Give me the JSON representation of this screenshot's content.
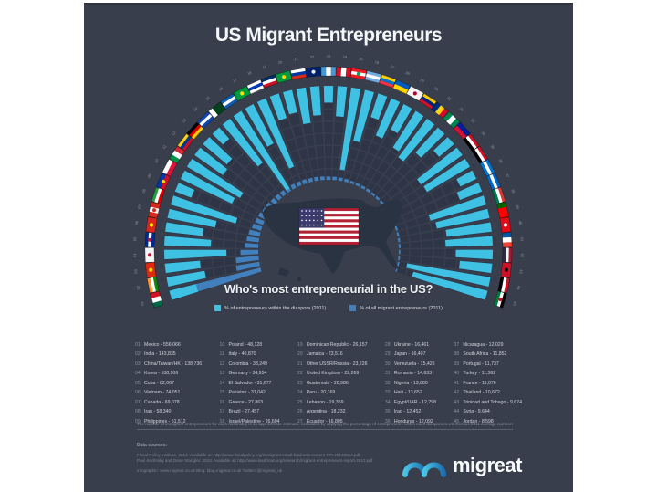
{
  "header": {
    "title": "US Migrant Entrepreneurs"
  },
  "question": "Who's most entrepreneurial in the US?",
  "legend": {
    "items": [
      {
        "label": "% of entrepreneurs within the diaspora (2011)",
        "color": "#3FC1E4"
      },
      {
        "label": "% of all migrant entrepreneurs (2011)",
        "color": "#4180BC"
      }
    ]
  },
  "chart_data": {
    "type": "radial-bar",
    "title": "US Migrant Entrepreneurs",
    "subtitle": "Who's most entrepreneurial in the US?",
    "legend_position": "bottom-center",
    "arc_degrees": 212,
    "series": [
      {
        "name": "% of entrepreneurs within the diaspora (2011)",
        "color": "#3FC1E4",
        "anchor": "outer"
      },
      {
        "name": "% of all migrant entrepreneurs (2011)",
        "color": "#4180BC",
        "anchor": "inner"
      }
    ],
    "countries": [
      {
        "rank": "01",
        "name": "Mexico",
        "count": "556,066",
        "within_diaspora_pct": 4.9,
        "share_of_all_pct": 27.7,
        "flag": {
          "o": "v",
          "c": [
            "#006847",
            "#ffffff",
            "#ce1126"
          ]
        }
      },
      {
        "rank": "02",
        "name": "India",
        "count": "143,835",
        "within_diaspora_pct": 6.9,
        "share_of_all_pct": 7.2,
        "flag": {
          "o": "h",
          "c": [
            "#ff9933",
            "#ffffff",
            "#128807"
          ]
        }
      },
      {
        "rank": "03",
        "name": "China/Taiwan/HK",
        "count": "138,736",
        "within_diaspora_pct": 6.3,
        "share_of_all_pct": 6.9,
        "flag": {
          "o": "s",
          "c": [
            "#de2910"
          ],
          "e": "#ffde00"
        }
      },
      {
        "rank": "04",
        "name": "Korea",
        "count": "108,906",
        "within_diaspora_pct": 11.1,
        "share_of_all_pct": 5.4,
        "flag": {
          "o": "s",
          "c": [
            "#f5f5f5"
          ],
          "e": "#c60c30"
        }
      },
      {
        "rank": "05",
        "name": "Cuba",
        "count": "82,067",
        "within_diaspora_pct": 8.3,
        "share_of_all_pct": 4.1,
        "flag": {
          "o": "h",
          "c": [
            "#002a8f",
            "#ffffff",
            "#002a8f"
          ],
          "e": "#cf142b"
        }
      },
      {
        "rank": "06",
        "name": "Vietnam",
        "count": "74,051",
        "within_diaspora_pct": 6.7,
        "share_of_all_pct": 3.7,
        "flag": {
          "o": "s",
          "c": [
            "#da251d"
          ],
          "e": "#ffff00"
        }
      },
      {
        "rank": "07",
        "name": "Canada",
        "count": "69,078",
        "within_diaspora_pct": 8.7,
        "share_of_all_pct": 3.4,
        "flag": {
          "o": "v",
          "c": [
            "#d52b1e",
            "#ffffff",
            "#d52b1e"
          ],
          "e": "#d52b1e"
        }
      },
      {
        "rank": "08",
        "name": "Iran",
        "count": "58,340",
        "within_diaspora_pct": 12.1,
        "share_of_all_pct": 2.9,
        "flag": {
          "o": "h",
          "c": [
            "#239f40",
            "#ffffff",
            "#da0000"
          ]
        }
      },
      {
        "rank": "09",
        "name": "Philippines",
        "count": "51,512",
        "within_diaspora_pct": 3.1,
        "share_of_all_pct": 2.6,
        "flag": {
          "o": "h",
          "c": [
            "#0038a8",
            "#ce1126"
          ],
          "e": "#fcd116"
        }
      },
      {
        "rank": "10",
        "name": "Poland",
        "count": "48,128",
        "within_diaspora_pct": 10.2,
        "share_of_all_pct": 2.4,
        "flag": {
          "o": "h",
          "c": [
            "#ffffff",
            "#dc143c"
          ]
        }
      },
      {
        "rank": "11",
        "name": "Italy",
        "count": "40,870",
        "within_diaspora_pct": 11.0,
        "share_of_all_pct": 2.0,
        "flag": {
          "o": "v",
          "c": [
            "#009246",
            "#ffffff",
            "#ce2b37"
          ]
        }
      },
      {
        "rank": "12",
        "name": "Colombia",
        "count": "38,249",
        "within_diaspora_pct": 6.2,
        "share_of_all_pct": 1.9,
        "flag": {
          "o": "h",
          "c": [
            "#fcd116",
            "#003893",
            "#ce1126"
          ]
        }
      },
      {
        "rank": "13",
        "name": "Germany",
        "count": "34,954",
        "within_diaspora_pct": 5.6,
        "share_of_all_pct": 1.7,
        "flag": {
          "o": "h",
          "c": [
            "#000000",
            "#dd0000",
            "#ffce00"
          ]
        }
      },
      {
        "rank": "14",
        "name": "El Salvador",
        "count": "31,677",
        "within_diaspora_pct": 2.7,
        "share_of_all_pct": 1.6,
        "flag": {
          "o": "h",
          "c": [
            "#0f47af",
            "#ffffff",
            "#0f47af"
          ]
        }
      },
      {
        "rank": "15",
        "name": "Pakistan",
        "count": "31,042",
        "within_diaspora_pct": 9.8,
        "share_of_all_pct": 1.5,
        "flag": {
          "o": "v",
          "c": [
            "#ffffff",
            "#01411c",
            "#01411c"
          ]
        }
      },
      {
        "rank": "16",
        "name": "Greece",
        "count": "27,863",
        "within_diaspora_pct": 16.3,
        "share_of_all_pct": 1.4,
        "flag": {
          "o": "h",
          "c": [
            "#0d5eaf",
            "#ffffff",
            "#0d5eaf"
          ]
        }
      },
      {
        "rank": "17",
        "name": "Brazil",
        "count": "27,457",
        "within_diaspora_pct": 7.9,
        "share_of_all_pct": 1.4,
        "flag": {
          "o": "s",
          "c": [
            "#009c3b"
          ],
          "e": "#ffdf00"
        }
      },
      {
        "rank": "18",
        "name": "Israel/Palestine",
        "count": "26,604",
        "within_diaspora_pct": 13.2,
        "share_of_all_pct": 1.3,
        "flag": {
          "o": "h",
          "c": [
            "#ffffff",
            "#0038b8",
            "#ffffff"
          ]
        }
      },
      {
        "rank": "19",
        "name": "Dominican Republic",
        "count": "26,157",
        "within_diaspora_pct": 4.6,
        "share_of_all_pct": 1.3,
        "flag": {
          "o": "h",
          "c": [
            "#002d62",
            "#ffffff",
            "#ce1126"
          ]
        }
      },
      {
        "rank": "20",
        "name": "Jamaica",
        "count": "23,516",
        "within_diaspora_pct": 4.1,
        "share_of_all_pct": 1.2,
        "flag": {
          "o": "s",
          "c": [
            "#009b3a"
          ],
          "e": "#fed100"
        }
      },
      {
        "rank": "21",
        "name": "Other USSR/Russia",
        "count": "23,226",
        "within_diaspora_pct": 6.4,
        "share_of_all_pct": 1.2,
        "flag": {
          "o": "h",
          "c": [
            "#ffffff",
            "#0039a6",
            "#d52b1e"
          ]
        }
      },
      {
        "rank": "22",
        "name": "United Kingdom",
        "count": "22,269",
        "within_diaspora_pct": 5.2,
        "share_of_all_pct": 1.1,
        "flag": {
          "o": "s",
          "c": [
            "#012169"
          ],
          "e": "#e8edf2"
        }
      },
      {
        "rank": "23",
        "name": "Guatemala",
        "count": "20,986",
        "within_diaspora_pct": 3.0,
        "share_of_all_pct": 1.0,
        "flag": {
          "o": "v",
          "c": [
            "#4997d0",
            "#ffffff",
            "#4997d0"
          ]
        }
      },
      {
        "rank": "24",
        "name": "Peru",
        "count": "20,169",
        "within_diaspora_pct": 5.4,
        "share_of_all_pct": 1.0,
        "flag": {
          "o": "v",
          "c": [
            "#d91023",
            "#ffffff",
            "#d91023"
          ]
        }
      },
      {
        "rank": "25",
        "name": "Lebanon",
        "count": "19,359",
        "within_diaspora_pct": 14.8,
        "share_of_all_pct": 1.0,
        "flag": {
          "o": "h",
          "c": [
            "#ed1c24",
            "#ffffff",
            "#ed1c24"
          ],
          "e": "#00a651"
        }
      },
      {
        "rank": "26",
        "name": "Argentina",
        "count": "18,232",
        "within_diaspora_pct": 9.3,
        "share_of_all_pct": 0.9,
        "flag": {
          "o": "h",
          "c": [
            "#74acdf",
            "#ffffff",
            "#74acdf"
          ]
        }
      },
      {
        "rank": "27",
        "name": "Ecuador",
        "count": "16,805",
        "within_diaspora_pct": 4.4,
        "share_of_all_pct": 0.8,
        "flag": {
          "o": "h",
          "c": [
            "#ffd100",
            "#0072ce",
            "#ef3340"
          ]
        }
      },
      {
        "rank": "28",
        "name": "Ukraine",
        "count": "16,461",
        "within_diaspora_pct": 7.2,
        "share_of_all_pct": 0.8,
        "flag": {
          "o": "h",
          "c": [
            "#005bbb",
            "#ffd500"
          ]
        }
      },
      {
        "rank": "29",
        "name": "Japan",
        "count": "16,407",
        "within_diaspora_pct": 5.1,
        "share_of_all_pct": 0.8,
        "flag": {
          "o": "s",
          "c": [
            "#f5f5f5"
          ],
          "e": "#bc002d"
        }
      },
      {
        "rank": "30",
        "name": "Venezuela",
        "count": "15,426",
        "within_diaspora_pct": 7.7,
        "share_of_all_pct": 0.8,
        "flag": {
          "o": "h",
          "c": [
            "#ffcc00",
            "#00247d",
            "#cf142b"
          ]
        }
      },
      {
        "rank": "31",
        "name": "Romania",
        "count": "14,633",
        "within_diaspora_pct": 8.6,
        "share_of_all_pct": 0.7,
        "flag": {
          "o": "v",
          "c": [
            "#002b7f",
            "#fcd116",
            "#ce1126"
          ]
        }
      },
      {
        "rank": "32",
        "name": "Nigeria",
        "count": "13,880",
        "within_diaspora_pct": 6.0,
        "share_of_all_pct": 0.7,
        "flag": {
          "o": "v",
          "c": [
            "#008751",
            "#ffffff",
            "#008751"
          ]
        }
      },
      {
        "rank": "33",
        "name": "Haiti",
        "count": "13,652",
        "within_diaspora_pct": 3.5,
        "share_of_all_pct": 0.7,
        "flag": {
          "o": "h",
          "c": [
            "#00209f",
            "#d21034"
          ]
        }
      },
      {
        "rank": "34",
        "name": "Egypt/UAR",
        "count": "12,798",
        "within_diaspora_pct": 9.1,
        "share_of_all_pct": 0.6,
        "flag": {
          "o": "h",
          "c": [
            "#ce1126",
            "#ffffff",
            "#000000"
          ]
        }
      },
      {
        "rank": "35",
        "name": "Iraq",
        "count": "12,452",
        "within_diaspora_pct": 8.9,
        "share_of_all_pct": 0.6,
        "flag": {
          "o": "h",
          "c": [
            "#ce1126",
            "#ffffff",
            "#000000"
          ]
        }
      },
      {
        "rank": "36",
        "name": "Honduras",
        "count": "12,092",
        "within_diaspora_pct": 3.2,
        "share_of_all_pct": 0.6,
        "flag": {
          "o": "h",
          "c": [
            "#0073cf",
            "#ffffff",
            "#0073cf"
          ]
        }
      },
      {
        "rank": "37",
        "name": "Nicaragua",
        "count": "12,029",
        "within_diaspora_pct": 4.2,
        "share_of_all_pct": 0.6,
        "flag": {
          "o": "h",
          "c": [
            "#0067c6",
            "#ffffff",
            "#0067c6"
          ]
        }
      },
      {
        "rank": "38",
        "name": "South Africa",
        "count": "11,852",
        "within_diaspora_pct": 10.4,
        "share_of_all_pct": 0.6,
        "flag": {
          "o": "h",
          "c": [
            "#de3831",
            "#ffffff",
            "#007a4d"
          ]
        }
      },
      {
        "rank": "39",
        "name": "Portugal",
        "count": "11,737",
        "within_diaspora_pct": 9.6,
        "share_of_all_pct": 0.6,
        "flag": {
          "o": "v",
          "c": [
            "#006600",
            "#ff0000",
            "#ff0000"
          ]
        }
      },
      {
        "rank": "40",
        "name": "Turkey",
        "count": "11,362",
        "within_diaspora_pct": 8.1,
        "share_of_all_pct": 0.6,
        "flag": {
          "o": "s",
          "c": [
            "#e30a17"
          ],
          "e": "#ffffff"
        }
      },
      {
        "rank": "41",
        "name": "France",
        "count": "11,076",
        "within_diaspora_pct": 8.4,
        "share_of_all_pct": 0.6,
        "flag": {
          "o": "v",
          "c": [
            "#0055a4",
            "#ffffff",
            "#ef4135"
          ]
        }
      },
      {
        "rank": "42",
        "name": "Thailand",
        "count": "10,672",
        "within_diaspora_pct": 6.6,
        "share_of_all_pct": 0.5,
        "flag": {
          "o": "h",
          "c": [
            "#a51931",
            "#f4f5f8",
            "#2d2a4a"
          ]
        }
      },
      {
        "rank": "43",
        "name": "Trinidad and Tobago",
        "count": "9,674",
        "within_diaspora_pct": 5.8,
        "share_of_all_pct": 0.5,
        "flag": {
          "o": "s",
          "c": [
            "#ce1126"
          ],
          "e": "#000000"
        }
      },
      {
        "rank": "44",
        "name": "Syria",
        "count": "9,644",
        "within_diaspora_pct": 15.1,
        "share_of_all_pct": 0.5,
        "flag": {
          "o": "h",
          "c": [
            "#ce1126",
            "#ffffff",
            "#000000"
          ]
        }
      },
      {
        "rank": "45",
        "name": "Jordan",
        "count": "8,598",
        "within_diaspora_pct": 13.7,
        "share_of_all_pct": 0.4,
        "flag": {
          "o": "h",
          "c": [
            "#000000",
            "#ffffff",
            "#007a3d"
          ],
          "e": "#ce1126"
        }
      }
    ]
  },
  "footer": {
    "disclaimer": "The number of immigrant entrepreneurs for each nationality is an approximate estimate, calculated by applying the percentage of entrepreneurs within each diaspora to US Census 2011 average numbers of foreign-born businesspersons in the US.",
    "sources_heading": "Data sources:",
    "sources": [
      "Fiscal Policy Institute, 2012. Available at: http://www.fiscalpolicy.org/immigrant-small-business-owners-FPI-20120614.pdf",
      "Paul Kedrosky and Dane Stangler, 2013. Available at: http://www.kauffman.org/research/migrant-entrepreneurs-report-2013.pdf"
    ],
    "extra_line": "Infographic: www.migreat.co.uk   Blog: blog.migreat.co.uk   Twitter: @migreat_uk",
    "logo_text": "migreat"
  },
  "colors": {
    "panel_bg": "#383E4C",
    "grid_cell": "#2E3547",
    "series_diaspora": "#3FC1E4",
    "series_share": "#4180BC",
    "map_silhouette": "#2A3342",
    "us_flag_red": "#B22234",
    "us_flag_blue": "#3C3B6E"
  }
}
